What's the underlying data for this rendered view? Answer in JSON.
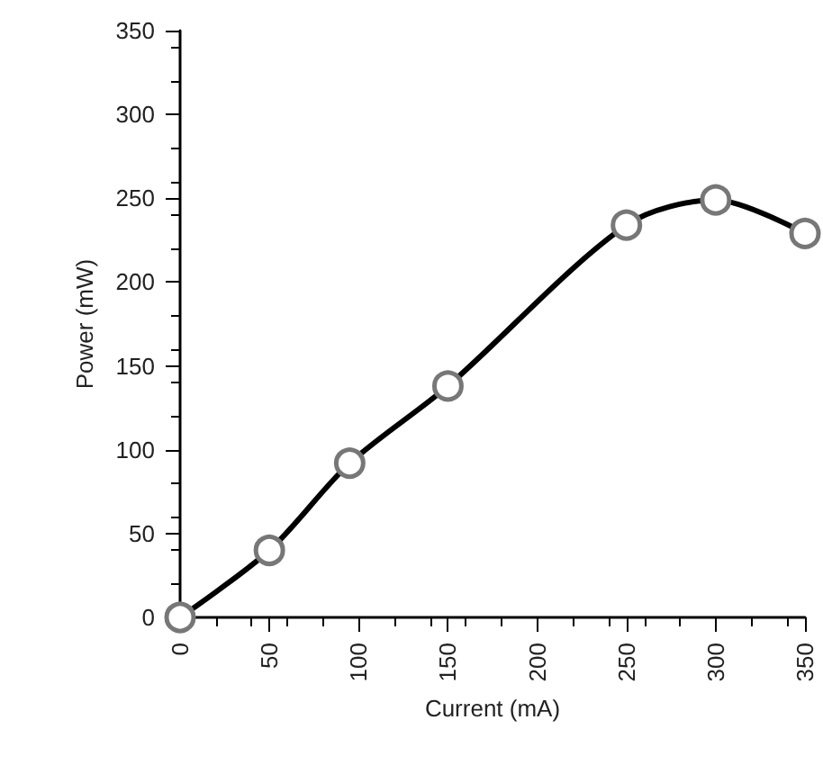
{
  "chart_data": {
    "type": "line",
    "xlabel": "Current (mA)",
    "ylabel": "Power (mW)",
    "x": [
      0,
      50,
      95,
      150,
      250,
      300,
      350
    ],
    "series": [
      {
        "color": "#000000",
        "values": [
          0,
          40,
          92,
          138,
          234,
          249,
          229
        ]
      }
    ],
    "xlim": [
      0,
      350
    ],
    "xticks": [
      0,
      50,
      100,
      150,
      200,
      250,
      300,
      350
    ],
    "ylim": [
      0,
      350
    ],
    "yticks": [
      0,
      50,
      100,
      150,
      200,
      250,
      300,
      350
    ],
    "grid": false,
    "marker": "circle",
    "line_style": "solid"
  }
}
